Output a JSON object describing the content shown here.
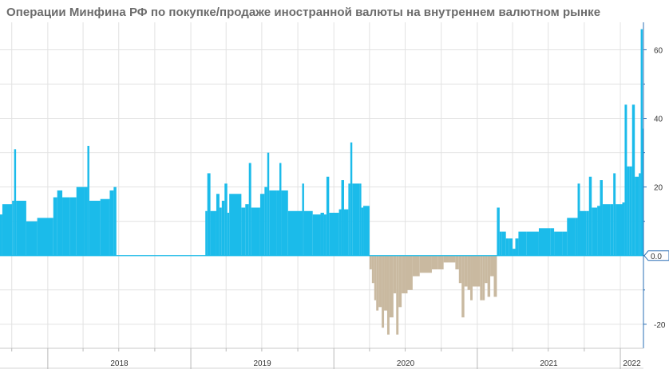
{
  "chart_data": {
    "type": "bar",
    "title": "Операции Минфина РФ по покупке/продаже иностранной валюты на внутреннем валютном рынке",
    "xlabel": "",
    "ylabel": "",
    "ylim": [
      -27,
      68
    ],
    "x_range": [
      "2017-09-01",
      "2022-03-01"
    ],
    "y_ticks": [
      -20,
      0,
      20,
      40,
      60
    ],
    "last_value_label": "0.0",
    "year_labels": [
      "2018",
      "2019",
      "2020",
      "2021",
      "2022"
    ],
    "grid": true,
    "colors": {
      "purchase": "#1bbbea",
      "sale": "#c9b9a0",
      "axis": "#2a6fb5"
    },
    "series": [
      {
        "values": [
          [
            "2017-09-01",
            12
          ],
          [
            "2017-09-07",
            15
          ],
          [
            "2017-10-02",
            16
          ],
          [
            "2017-10-07",
            31
          ],
          [
            "2017-10-12",
            16
          ],
          [
            "2017-11-07",
            10
          ],
          [
            "2017-12-05",
            11
          ],
          [
            "2018-01-15",
            17
          ],
          [
            "2018-01-25",
            19
          ],
          [
            "2018-02-07",
            17
          ],
          [
            "2018-02-27",
            17
          ],
          [
            "2018-03-15",
            20
          ],
          [
            "2018-04-03",
            20
          ],
          [
            "2018-04-12",
            32
          ],
          [
            "2018-04-17",
            16
          ],
          [
            "2018-05-15",
            16.5
          ],
          [
            "2018-06-04",
            16.5
          ],
          [
            "2018-06-08",
            19
          ],
          [
            "2018-06-18",
            20
          ],
          [
            "2018-06-25",
            0
          ],
          [
            "2019-02-07",
            13
          ],
          [
            "2019-02-12",
            24
          ],
          [
            "2019-02-20",
            13
          ],
          [
            "2019-03-07",
            18
          ],
          [
            "2019-03-15",
            14
          ],
          [
            "2019-03-21",
            16
          ],
          [
            "2019-03-28",
            21
          ],
          [
            "2019-04-04",
            12.5
          ],
          [
            "2019-04-09",
            18
          ],
          [
            "2019-05-10",
            14
          ],
          [
            "2019-05-20",
            15
          ],
          [
            "2019-05-29",
            27
          ],
          [
            "2019-06-04",
            14
          ],
          [
            "2019-06-20",
            14
          ],
          [
            "2019-06-27",
            18
          ],
          [
            "2019-07-08",
            20
          ],
          [
            "2019-07-15",
            30
          ],
          [
            "2019-07-20",
            19
          ],
          [
            "2019-08-07",
            19
          ],
          [
            "2019-08-15",
            27
          ],
          [
            "2019-08-20",
            19
          ],
          [
            "2019-09-06",
            13
          ],
          [
            "2019-10-07",
            13
          ],
          [
            "2019-10-12",
            21
          ],
          [
            "2019-10-17",
            13
          ],
          [
            "2019-11-08",
            12
          ],
          [
            "2019-11-28",
            12.5
          ],
          [
            "2019-12-07",
            12
          ],
          [
            "2019-12-13",
            23
          ],
          [
            "2019-12-20",
            12.5
          ],
          [
            "2020-01-14",
            13.5
          ],
          [
            "2020-01-20",
            22
          ],
          [
            "2020-01-27",
            13.5
          ],
          [
            "2020-02-07",
            21
          ],
          [
            "2020-02-12",
            33
          ],
          [
            "2020-02-17",
            21
          ],
          [
            "2020-03-06",
            21
          ],
          [
            "2020-03-11",
            14
          ],
          [
            "2020-03-16",
            14.5
          ],
          [
            "2020-04-01",
            -4
          ],
          [
            "2020-04-07",
            -8
          ],
          [
            "2020-04-13",
            -13
          ],
          [
            "2020-04-18",
            -16
          ],
          [
            "2020-04-24",
            -15
          ],
          [
            "2020-05-02",
            -21
          ],
          [
            "2020-05-08",
            -16
          ],
          [
            "2020-05-16",
            -23
          ],
          [
            "2020-05-22",
            -18
          ],
          [
            "2020-06-01",
            -11
          ],
          [
            "2020-06-08",
            -23
          ],
          [
            "2020-06-14",
            -15
          ],
          [
            "2020-06-22",
            -11
          ],
          [
            "2020-07-01",
            -11
          ],
          [
            "2020-07-07",
            -10
          ],
          [
            "2020-07-20",
            -6
          ],
          [
            "2020-08-07",
            -5
          ],
          [
            "2020-09-07",
            -4
          ],
          [
            "2020-09-23",
            -4
          ],
          [
            "2020-10-07",
            -2
          ],
          [
            "2020-10-20",
            -2
          ],
          [
            "2020-11-06",
            -4
          ],
          [
            "2020-11-15",
            -8
          ],
          [
            "2020-11-22",
            -18
          ],
          [
            "2020-11-29",
            -9
          ],
          [
            "2020-12-07",
            -10
          ],
          [
            "2020-12-14",
            -13
          ],
          [
            "2020-12-20",
            -9
          ],
          [
            "2021-01-08",
            -13
          ],
          [
            "2021-01-14",
            -13
          ],
          [
            "2021-01-20",
            -8
          ],
          [
            "2021-01-27",
            -12
          ],
          [
            "2021-02-03",
            -6
          ],
          [
            "2021-02-12",
            -12
          ],
          [
            "2021-02-20",
            14
          ],
          [
            "2021-02-27",
            7
          ],
          [
            "2021-03-05",
            7
          ],
          [
            "2021-03-15",
            5
          ],
          [
            "2021-03-22",
            5
          ],
          [
            "2021-04-01",
            2
          ],
          [
            "2021-04-08",
            5
          ],
          [
            "2021-04-16",
            7
          ],
          [
            "2021-05-07",
            7
          ],
          [
            "2021-06-07",
            8
          ],
          [
            "2021-07-07",
            8
          ],
          [
            "2021-07-16",
            7
          ],
          [
            "2021-08-06",
            7
          ],
          [
            "2021-08-18",
            11
          ],
          [
            "2021-09-07",
            11
          ],
          [
            "2021-09-14",
            21
          ],
          [
            "2021-09-20",
            13
          ],
          [
            "2021-10-07",
            13
          ],
          [
            "2021-10-13",
            23
          ],
          [
            "2021-10-20",
            14
          ],
          [
            "2021-11-03",
            14.5
          ],
          [
            "2021-11-10",
            22
          ],
          [
            "2021-11-17",
            15
          ],
          [
            "2021-12-07",
            15
          ],
          [
            "2021-12-14",
            24
          ],
          [
            "2021-12-20",
            15
          ],
          [
            "2022-01-06",
            15.5
          ],
          [
            "2022-01-12",
            44
          ],
          [
            "2022-01-18",
            26
          ],
          [
            "2022-01-25",
            26
          ],
          [
            "2022-01-31",
            44
          ],
          [
            "2022-02-07",
            23
          ],
          [
            "2022-02-17",
            24
          ],
          [
            "2022-02-22",
            66
          ],
          [
            "2022-02-27",
            37
          ],
          [
            "2022-03-01",
            0
          ]
        ]
      }
    ]
  }
}
